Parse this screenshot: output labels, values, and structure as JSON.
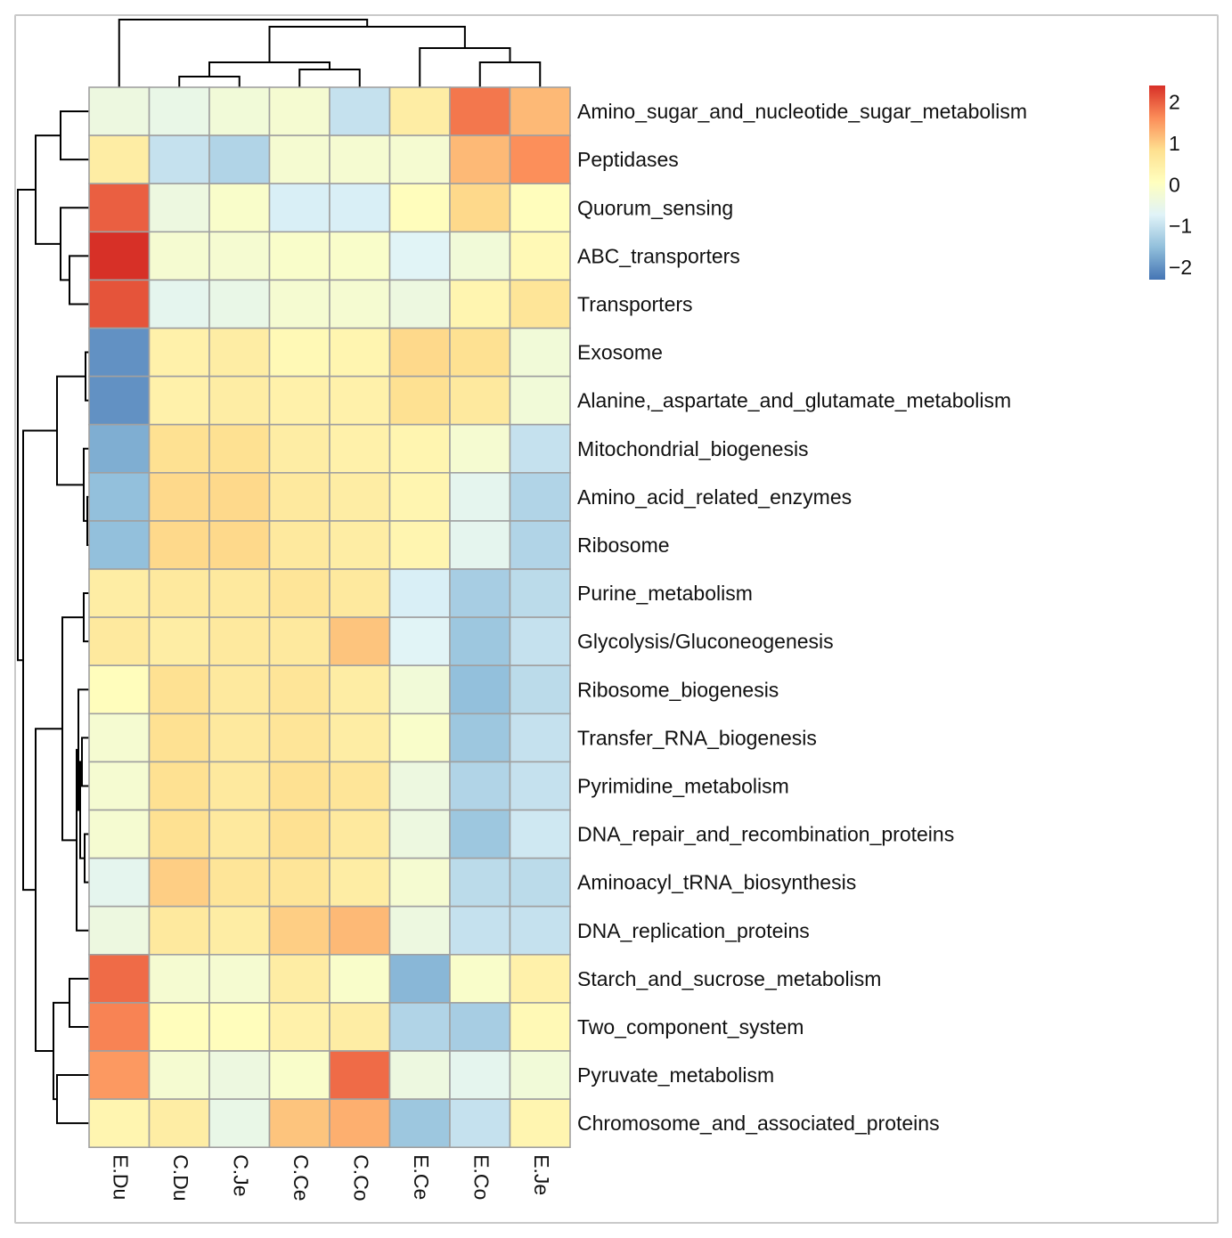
{
  "chart_data": {
    "type": "heatmap",
    "title": "",
    "xlabel": "",
    "ylabel": "",
    "columns": [
      "E.Du",
      "C.Du",
      "C.Je",
      "C.Ce",
      "C.Co",
      "E.Ce",
      "E.Co",
      "E.Je"
    ],
    "rows": [
      "Amino_sugar_and_nucleotide_sugar_metabolism",
      "Peptidases",
      "Quorum_sensing",
      "ABC_transporters",
      "Transporters",
      "Exosome",
      "Alanine,_aspartate_and_glutamate_metabolism",
      "Mitochondrial_biogenesis",
      "Amino_acid_related_enzymes",
      "Ribosome",
      "Purine_metabolism",
      "Glycolysis/Gluconeogenesis",
      "Ribosome_biogenesis",
      "Transfer_RNA_biogenesis",
      "Pyrimidine_metabolism",
      "DNA_repair_and_recombination_proteins",
      "Aminoacyl_tRNA_biosynthesis",
      "DNA_replication_proteins",
      "Starch_and_sucrose_metabolism",
      "Two_component_system",
      "Pyruvate_metabolism",
      "Chromosome_and_associated_proteins"
    ],
    "values": [
      [
        -0.4,
        -0.5,
        -0.3,
        -0.2,
        -1.0,
        0.5,
        1.8,
        1.2
      ],
      [
        0.5,
        -1.0,
        -1.2,
        -0.2,
        -0.2,
        -0.2,
        1.2,
        1.6
      ],
      [
        2.0,
        -0.4,
        -0.1,
        -0.8,
        -0.8,
        0.1,
        0.9,
        0.1
      ],
      [
        2.4,
        -0.2,
        -0.2,
        -0.1,
        -0.1,
        -0.7,
        -0.3,
        0.2
      ],
      [
        2.1,
        -0.6,
        -0.5,
        -0.2,
        -0.2,
        -0.4,
        0.3,
        0.7
      ],
      [
        -2.0,
        0.4,
        0.5,
        0.2,
        0.3,
        0.9,
        0.8,
        -0.3
      ],
      [
        -2.0,
        0.4,
        0.5,
        0.4,
        0.4,
        0.8,
        0.6,
        -0.3
      ],
      [
        -1.7,
        0.8,
        0.8,
        0.5,
        0.4,
        0.3,
        -0.2,
        -1.0
      ],
      [
        -1.5,
        0.9,
        0.9,
        0.6,
        0.5,
        0.3,
        -0.6,
        -1.2
      ],
      [
        -1.5,
        0.9,
        0.9,
        0.6,
        0.5,
        0.3,
        -0.6,
        -1.2
      ],
      [
        0.5,
        0.6,
        0.6,
        0.7,
        0.6,
        -0.8,
        -1.3,
        -1.1
      ],
      [
        0.6,
        0.5,
        0.6,
        0.6,
        1.1,
        -0.7,
        -1.4,
        -1.0
      ],
      [
        0.1,
        0.8,
        0.6,
        0.7,
        0.5,
        -0.3,
        -1.5,
        -1.1
      ],
      [
        -0.2,
        0.8,
        0.6,
        0.7,
        0.5,
        -0.1,
        -1.4,
        -1.0
      ],
      [
        -0.2,
        0.8,
        0.6,
        0.8,
        0.7,
        -0.4,
        -1.2,
        -1.0
      ],
      [
        -0.2,
        0.8,
        0.6,
        0.8,
        0.6,
        -0.4,
        -1.4,
        -0.9
      ],
      [
        -0.6,
        1.0,
        0.7,
        0.7,
        0.5,
        -0.2,
        -1.1,
        -1.1
      ],
      [
        -0.4,
        0.6,
        0.5,
        1.0,
        1.2,
        -0.4,
        -1.0,
        -1.0
      ],
      [
        1.9,
        -0.2,
        -0.2,
        0.5,
        -0.1,
        -1.6,
        -0.1,
        0.4
      ],
      [
        1.7,
        0.1,
        0.1,
        0.4,
        0.5,
        -1.2,
        -1.3,
        0.2
      ],
      [
        1.5,
        -0.2,
        -0.4,
        -0.1,
        1.9,
        -0.4,
        -0.6,
        -0.3
      ],
      [
        0.3,
        0.5,
        -0.5,
        1.1,
        1.3,
        -1.4,
        -1.0,
        0.3
      ]
    ],
    "colorbar": {
      "ticks": [
        2,
        1,
        0,
        -1,
        -2
      ],
      "tick_labels": [
        "2",
        "1",
        "0",
        "−1",
        "−2"
      ],
      "range": [
        -2.3,
        2.4
      ],
      "colors": [
        "#4575b4",
        "#91bfdb",
        "#e0f3f8",
        "#ffffbf",
        "#fee090",
        "#fc8d59",
        "#d73027"
      ]
    },
    "grid": true,
    "cell_border_color": "#a0a0a0",
    "col_dendrogram": true,
    "row_dendrogram": true,
    "legend_position": "top-right"
  }
}
